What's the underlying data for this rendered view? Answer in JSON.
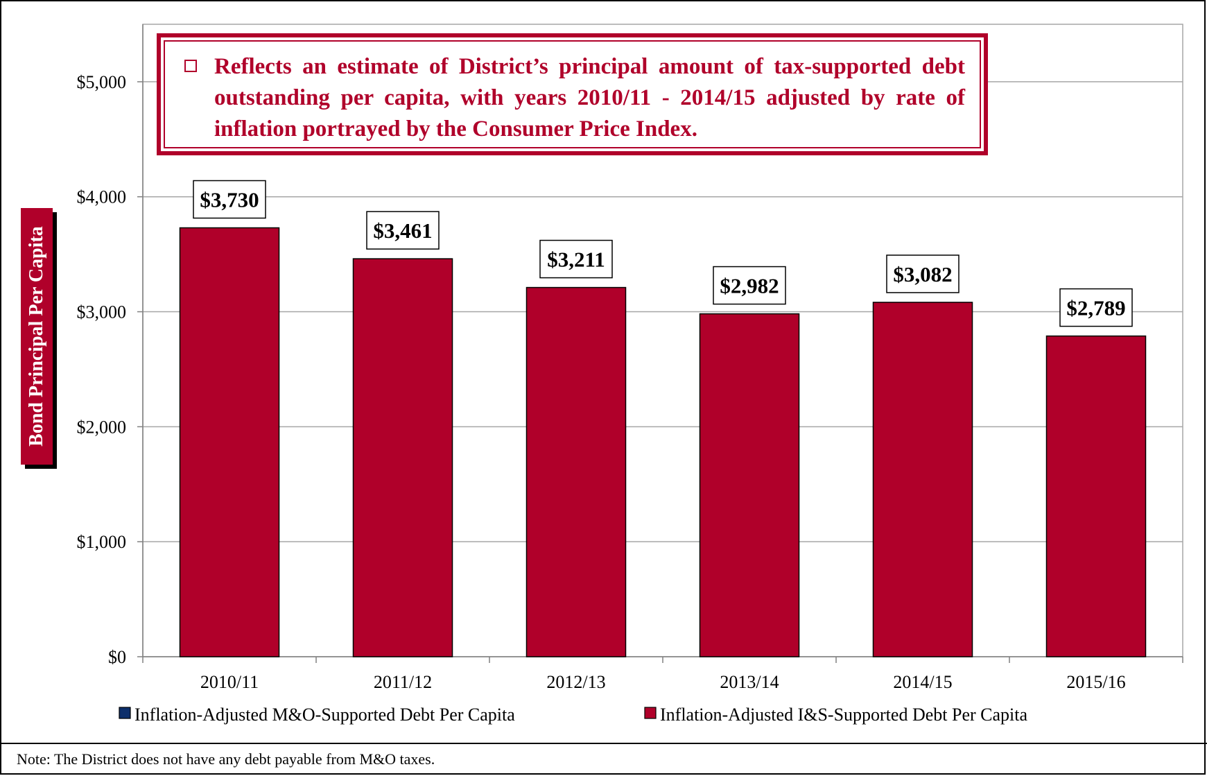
{
  "chart_data": {
    "type": "bar",
    "categories": [
      "2010/11",
      "2011/12",
      "2012/13",
      "2013/14",
      "2014/15",
      "2015/16"
    ],
    "series": [
      {
        "name": "Inflation-Adjusted M&O-Supported Debt Per Capita",
        "color": "#0d2f6b",
        "values": [
          0,
          0,
          0,
          0,
          0,
          0
        ]
      },
      {
        "name": "Inflation-Adjusted I&S-Supported Debt Per Capita",
        "color": "#b0002a",
        "values": [
          3730,
          3461,
          3211,
          2982,
          3082,
          2789
        ]
      }
    ],
    "data_labels": [
      "$3,730",
      "$3,461",
      "$3,211",
      "$2,982",
      "$3,082",
      "$2,789"
    ],
    "ylabel": "Bond Principal Per Capita",
    "ylim": [
      0,
      5500
    ],
    "yticks": [
      0,
      1000,
      2000,
      3000,
      4000,
      5000
    ],
    "ytick_labels": [
      "$0",
      "$1,000",
      "$2,000",
      "$3,000",
      "$4,000",
      "$5,000"
    ],
    "grid": true,
    "legend_position": "bottom"
  },
  "callout": {
    "text": "Reflects an estimate of District’s principal amount of tax-supported debt outstanding per capita, with years 2010/11 - 2014/15 adjusted by rate of inflation portrayed by the Consumer Price Index."
  },
  "note": "Note: The District does not have any debt payable from M&O taxes."
}
